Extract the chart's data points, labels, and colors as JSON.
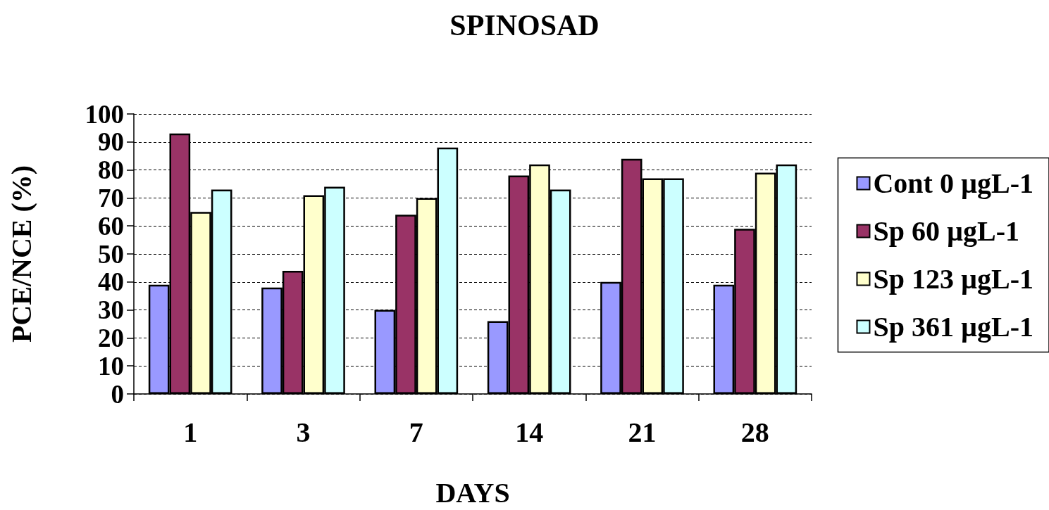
{
  "chart_data": {
    "type": "bar",
    "title": "SPINOSAD",
    "xlabel": "DAYS",
    "ylabel": "PCE/NCE (%)",
    "categories": [
      "1",
      "3",
      "7",
      "14",
      "21",
      "28"
    ],
    "series": [
      {
        "name": "Cont 0 µgL-1",
        "color": "#9999ff",
        "values": [
          39,
          38,
          30,
          26,
          40,
          39
        ]
      },
      {
        "name": "Sp 60 µgL-1",
        "color": "#993366",
        "values": [
          93,
          44,
          64,
          78,
          84,
          59
        ]
      },
      {
        "name": "Sp 123 µgL-1",
        "color": "#ffffcc",
        "values": [
          65,
          71,
          70,
          82,
          77,
          79
        ]
      },
      {
        "name": "Sp 361 µgL-1",
        "color": "#ccffff",
        "values": [
          73,
          74,
          88,
          73,
          77,
          82
        ]
      }
    ],
    "ylim": [
      0,
      100
    ],
    "yticks": [
      0,
      10,
      20,
      30,
      40,
      50,
      60,
      70,
      80,
      90,
      100
    ],
    "grid": "y",
    "legend": "right"
  }
}
